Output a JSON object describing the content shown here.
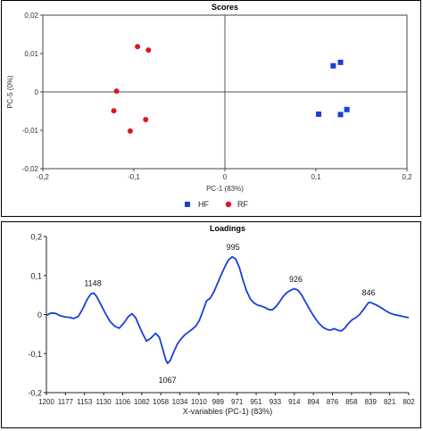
{
  "chart_data": [
    {
      "type": "scatter",
      "title": "Scores",
      "xlabel": "PC-1 (83%)",
      "ylabel": "PC-5 (0%)",
      "xlim": [
        -0.2,
        0.2
      ],
      "ylim": [
        -0.02,
        0.02
      ],
      "x_ticks": [
        "-0,2",
        "-0,1",
        "0",
        "0,1",
        "0,2"
      ],
      "y_ticks": [
        "0,02",
        "0,01",
        "0",
        "-0,01",
        "-0,02"
      ],
      "legend_position": "bottom-center",
      "series": [
        {
          "name": "HF",
          "color": "#1a3fdb",
          "marker": "square",
          "points": [
            [
              0.119,
              0.0068
            ],
            [
              0.127,
              0.0077
            ],
            [
              0.103,
              -0.0058
            ],
            [
              0.127,
              -0.0059
            ],
            [
              0.134,
              -0.0046
            ]
          ]
        },
        {
          "name": "RF",
          "color": "#e3141b",
          "marker": "circle",
          "points": [
            [
              -0.096,
              0.0118
            ],
            [
              -0.084,
              0.0109
            ],
            [
              -0.119,
              0.0002
            ],
            [
              -0.122,
              -0.0049
            ],
            [
              -0.087,
              -0.0072
            ],
            [
              -0.104,
              -0.0102
            ]
          ]
        }
      ]
    },
    {
      "type": "line",
      "title": "Loadings",
      "xlabel": "X-variables (PC-1) (83%)",
      "ylabel": "",
      "x_reversed": true,
      "xlim": [
        1200,
        802
      ],
      "ylim": [
        -0.2,
        0.2
      ],
      "x_ticks": [
        "1200",
        "1177",
        "1153",
        "1130",
        "1106",
        "1082",
        "1058",
        "1034",
        "1010",
        "989",
        "971",
        "951",
        "933",
        "914",
        "894",
        "876",
        "858",
        "839",
        "821",
        "802"
      ],
      "y_ticks": [
        "0,2",
        "0,1",
        "0",
        "-0,1",
        "-0,2"
      ],
      "annotations": [
        {
          "label": "1148",
          "x": 1149,
          "y": 0.055
        },
        {
          "label": "1067",
          "x": 1067,
          "y": -0.125
        },
        {
          "label": "995",
          "x": 995,
          "y": 0.148
        },
        {
          "label": "926",
          "x": 926,
          "y": 0.065
        },
        {
          "label": "846",
          "x": 846,
          "y": 0.031
        }
      ],
      "series": [
        {
          "name": "",
          "color": "#1a3fdb",
          "points": [
            [
              1200,
              -0.002
            ],
            [
              1195,
              0.004
            ],
            [
              1190,
              0.003
            ],
            [
              1185,
              -0.003
            ],
            [
              1180,
              -0.006
            ],
            [
              1175,
              -0.007
            ],
            [
              1170,
              -0.01
            ],
            [
              1165,
              -0.005
            ],
            [
              1160,
              0.015
            ],
            [
              1155,
              0.04
            ],
            [
              1151,
              0.053
            ],
            [
              1148,
              0.055
            ],
            [
              1145,
              0.047
            ],
            [
              1140,
              0.025
            ],
            [
              1135,
              0.002
            ],
            [
              1130,
              -0.018
            ],
            [
              1125,
              -0.03
            ],
            [
              1120,
              -0.035
            ],
            [
              1115,
              -0.022
            ],
            [
              1110,
              -0.005
            ],
            [
              1106,
              0.002
            ],
            [
              1102,
              -0.008
            ],
            [
              1098,
              -0.03
            ],
            [
              1094,
              -0.05
            ],
            [
              1090,
              -0.068
            ],
            [
              1085,
              -0.06
            ],
            [
              1080,
              -0.048
            ],
            [
              1076,
              -0.058
            ],
            [
              1072,
              -0.09
            ],
            [
              1069,
              -0.115
            ],
            [
              1067,
              -0.125
            ],
            [
              1064,
              -0.118
            ],
            [
              1060,
              -0.095
            ],
            [
              1056,
              -0.075
            ],
            [
              1052,
              -0.062
            ],
            [
              1048,
              -0.052
            ],
            [
              1044,
              -0.045
            ],
            [
              1040,
              -0.038
            ],
            [
              1036,
              -0.03
            ],
            [
              1032,
              -0.015
            ],
            [
              1028,
              0.01
            ],
            [
              1024,
              0.035
            ],
            [
              1020,
              0.042
            ],
            [
              1016,
              0.058
            ],
            [
              1012,
              0.08
            ],
            [
              1008,
              0.102
            ],
            [
              1004,
              0.122
            ],
            [
              1000,
              0.14
            ],
            [
              996,
              0.148
            ],
            [
              992,
              0.142
            ],
            [
              988,
              0.12
            ],
            [
              984,
              0.088
            ],
            [
              980,
              0.06
            ],
            [
              976,
              0.04
            ],
            [
              972,
              0.03
            ],
            [
              968,
              0.024
            ],
            [
              964,
              0.022
            ],
            [
              960,
              0.018
            ],
            [
              956,
              0.013
            ],
            [
              952,
              0.012
            ],
            [
              948,
              0.02
            ],
            [
              944,
              0.032
            ],
            [
              940,
              0.046
            ],
            [
              936,
              0.056
            ],
            [
              932,
              0.062
            ],
            [
              928,
              0.066
            ],
            [
              924,
              0.063
            ],
            [
              920,
              0.052
            ],
            [
              916,
              0.035
            ],
            [
              912,
              0.018
            ],
            [
              908,
              0.002
            ],
            [
              904,
              -0.012
            ],
            [
              900,
              -0.024
            ],
            [
              896,
              -0.033
            ],
            [
              892,
              -0.038
            ],
            [
              888,
              -0.04
            ],
            [
              884,
              -0.036
            ],
            [
              880,
              -0.04
            ],
            [
              876,
              -0.042
            ],
            [
              872,
              -0.034
            ],
            [
              868,
              -0.022
            ],
            [
              864,
              -0.013
            ],
            [
              860,
              -0.008
            ],
            [
              856,
              0.0
            ],
            [
              852,
              0.012
            ],
            [
              848,
              0.025
            ],
            [
              846,
              0.031
            ],
            [
              843,
              0.03
            ],
            [
              838,
              0.025
            ],
            [
              834,
              0.02
            ],
            [
              830,
              0.014
            ],
            [
              826,
              0.008
            ],
            [
              822,
              0.003
            ],
            [
              818,
              0.0
            ],
            [
              814,
              -0.002
            ],
            [
              810,
              -0.004
            ],
            [
              806,
              -0.006
            ],
            [
              802,
              -0.008
            ]
          ]
        }
      ]
    }
  ]
}
